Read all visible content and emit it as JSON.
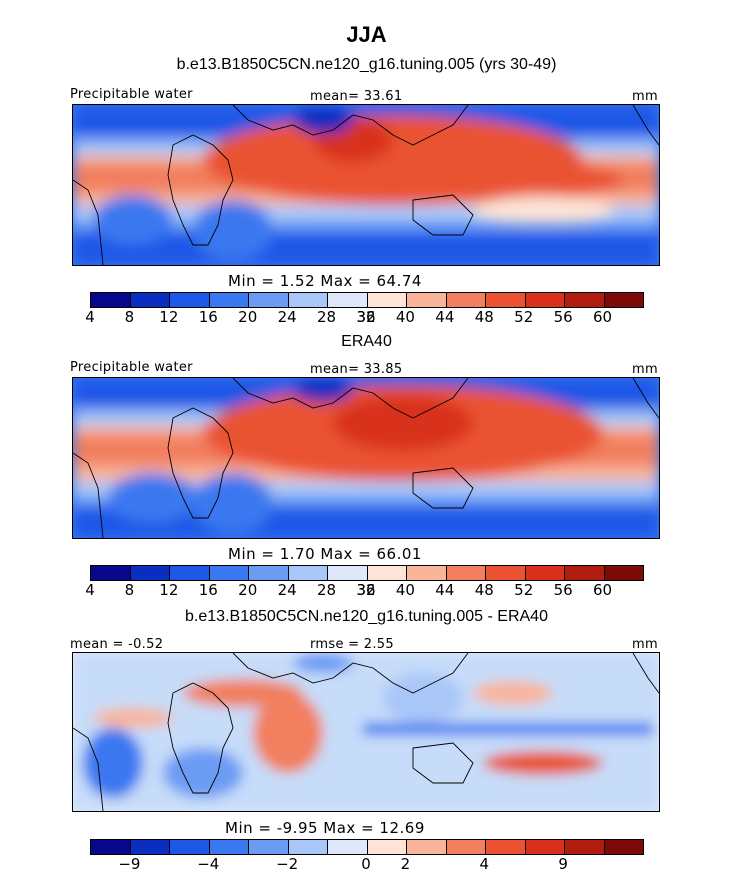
{
  "header": {
    "title": "JJA"
  },
  "chart_data": [
    {
      "type": "heatmap",
      "title": "b.e13.B1850C5CN.ne120_g16.tuning.005 (yrs 30-49)",
      "left_label": "Precipitable water",
      "center_label": "mean=  33.61",
      "right_label": "mm",
      "stats_label": "Min =    1.52  Max =   64.74",
      "min": 1.52,
      "max": 64.74,
      "mean": 33.61,
      "colorbar": {
        "colors": [
          "#08088c",
          "#0a2fc0",
          "#1e56e6",
          "#3a78f0",
          "#6c9bf4",
          "#a8c6f8",
          "#dde9fb",
          "#fde4d6",
          "#f9b499",
          "#f27f5e",
          "#ea5231",
          "#d8301a",
          "#b01c10",
          "#7e0a07"
        ],
        "tick_labels": [
          "4",
          "8",
          "12",
          "16",
          "20",
          "24",
          "28",
          "32",
          "36",
          "40",
          "44",
          "48",
          "52",
          "56",
          "60"
        ]
      }
    },
    {
      "type": "heatmap",
      "title": "ERA40",
      "left_label": "Precipitable water",
      "center_label": "mean=  33.85",
      "right_label": "mm",
      "stats_label": "Min =    1.70  Max =   66.01",
      "min": 1.7,
      "max": 66.01,
      "mean": 33.85,
      "colorbar": {
        "colors": [
          "#08088c",
          "#0a2fc0",
          "#1e56e6",
          "#3a78f0",
          "#6c9bf4",
          "#a8c6f8",
          "#dde9fb",
          "#fde4d6",
          "#f9b499",
          "#f27f5e",
          "#ea5231",
          "#d8301a",
          "#b01c10",
          "#7e0a07"
        ],
        "tick_labels": [
          "4",
          "8",
          "12",
          "16",
          "20",
          "24",
          "28",
          "32",
          "36",
          "40",
          "44",
          "48",
          "52",
          "56",
          "60"
        ]
      }
    },
    {
      "type": "heatmap",
      "title": "b.e13.B1850C5CN.ne120_g16.tuning.005 - ERA40",
      "left_label": "mean =  -0.52",
      "center_label": "rmse =    2.55",
      "right_label": "mm",
      "stats_label": "Min =   -9.95  Max =   12.69",
      "min": -9.95,
      "max": 12.69,
      "mean": -0.52,
      "rmse": 2.55,
      "colorbar": {
        "colors": [
          "#08088c",
          "#0a2fc0",
          "#1e56e6",
          "#3a78f0",
          "#6c9bf4",
          "#a8c6f8",
          "#dde9fb",
          "#fde4d6",
          "#f9b499",
          "#f27f5e",
          "#ea5231",
          "#d8301a",
          "#b01c10",
          "#7e0a07"
        ],
        "tick_labels": [
          "−9",
          "−4",
          "−2",
          "0",
          "2",
          "4",
          "9"
        ]
      }
    }
  ]
}
